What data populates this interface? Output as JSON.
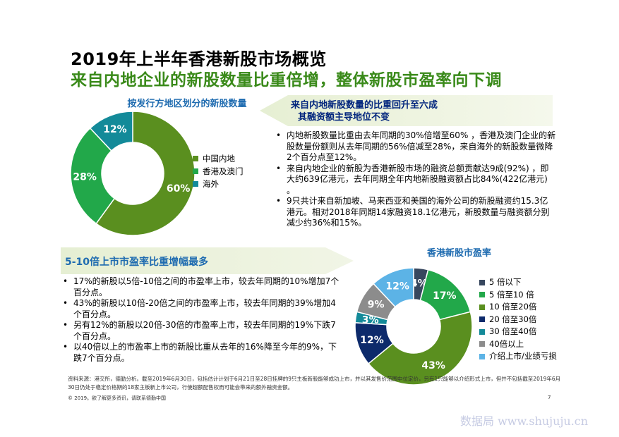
{
  "page": {
    "title_line1": "2019年上半年香港新股市场概览",
    "title_line2": "来自内地企业的新股数量比重倍增，整体新股市盈率向下调",
    "banner1_line1": "来自内地新股数量的比重回升至六成",
    "banner1_line2": "其融资额主导地位不变",
    "banner2": "5-10倍上市市盈率比重增幅最多",
    "bullets1": [
      "内地新股数量比重由去年同期的30%倍增至60% ，香港及澳门企业的新股数量份额则从去年同期的56%倍减至28%，来自海外的新股数量微降2个百分点至12%。",
      "来自内地企业的新股为香港新股市场的融资总额贡献达9成(92%) ，即大约639亿港元，去年同期全年内地新股融资额占比84%(422亿港元) 。",
      "9只共计来自新加坡、马来西亚和美国的海外公司的新股融资约15.3亿港元。相对2018年同期14家融资18.1亿港元，新股数量与融资额分别减少约36%和15%。"
    ],
    "bullets2": [
      "17%的新股以5倍-10倍之间的市盈率上市，较去年同期的10%增加7个百分点。",
      "43%的新股以10倍-20倍之间的市盈率上市，较去年同期的39%增加4个百分点。",
      "另有12%的新股以20倍-30倍的市盈率上市，较去年同期的19%下跌7个百分点。",
      "以40倍以上的市盈率上市的新股比重从去年的16%降至今年的9%，下跌7个百分点。"
    ],
    "footnote": "资料来源：港交所，德勤分析。截至2019年6月30日，包括估计计划于6月21日至28日挂牌的9只主板新股能够成功上市，并以其发售价范围中位定价，另有1只能够以介绍形式上市，但并不包括截至2019年6月30日仍处于稳定价格期的18家主板新上市公司，行使超额配售权而可能会带来的额外融资金额。",
    "copyright": "© 2019。欲了解更多资讯，请联系德勤中国",
    "page_number": "7",
    "watermark": "数据局 www.shujuju.cn"
  },
  "chart_data": [
    {
      "type": "pie",
      "variant": "donut",
      "title": "按发行方地区划分的新股数量",
      "legend_position": "right",
      "categories": [
        "中国内地",
        "香港及澳门",
        "海外"
      ],
      "values": [
        60,
        28,
        12
      ],
      "labels": [
        "60%",
        "28%",
        "12%"
      ],
      "colors": [
        "#5a8f1f",
        "#22a84a",
        "#138a99"
      ]
    },
    {
      "type": "pie",
      "variant": "donut",
      "title": "香港新股市盈率",
      "legend_position": "right",
      "categories": [
        "5 倍以下",
        "5 倍至10 倍",
        "10 倍至20倍",
        "20 倍至30倍",
        "30 倍至40倍",
        "40倍以上",
        "介绍上市/业绩亏损"
      ],
      "values": [
        4,
        17,
        43,
        12,
        3,
        9,
        12
      ],
      "labels": [
        "4%",
        "17%",
        "43%",
        "12%",
        "3%",
        "9%",
        "12%"
      ],
      "colors": [
        "#37475e",
        "#22a84a",
        "#5a8f1f",
        "#0d2a6b",
        "#138a99",
        "#8c8c8c",
        "#5cb3e6"
      ]
    }
  ]
}
